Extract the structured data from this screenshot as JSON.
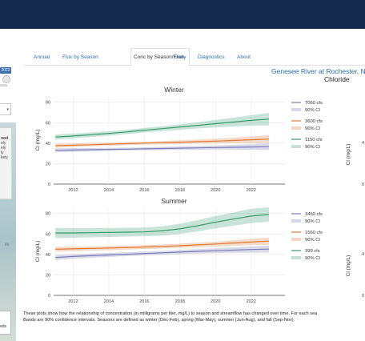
{
  "left_panel": {
    "year_badge": "2023",
    "year_tick": "2023",
    "popup_lines": [
      "ood",
      "ely",
      "ely",
      "",
      "",
      "ly",
      "kely"
    ],
    "map_label": "Irk",
    "legend_label": "eds",
    "below_map_text": "n."
  },
  "tabs": [
    "Annual",
    "Flux by Season",
    "Conc by Season/Flow",
    "Daily",
    "Diagnostics",
    "About"
  ],
  "active_tab": "Conc by Season/Flow",
  "site_title": "Genesee River at Rochester, N",
  "param_title": "Chloride",
  "footnote": {
    "line1": "These plots show how the relationship of concentration (in milligrams per liter, mg/L) to season and streamflow has changed over time. For each sea",
    "line2": "Bands are 90% confidence intervals. Seasons are defined as winter (Dec-Feb), spring (Mar-May), summer (Jun-Aug), and fall (Sep-Nov)."
  },
  "colors": {
    "high_flow": "#7b7bb8",
    "mid_flow": "#e07b39",
    "low_flow": "#3a9a6e",
    "header": "#142a4f",
    "link": "#2a6fb8"
  },
  "right_edge": {
    "ylabel": "Cl (mg/L)",
    "tick": "4"
  },
  "chart_data": [
    {
      "type": "line",
      "title": "Winter",
      "xlabel": "",
      "ylabel": "Cl (mg/L)",
      "xlim": [
        2010.9,
        2023.9
      ],
      "ylim": [
        0,
        86
      ],
      "xticks": [
        2012,
        2014,
        2016,
        2018,
        2020,
        2022
      ],
      "yticks": [
        0,
        20,
        40,
        60,
        80
      ],
      "x": [
        2011,
        2012,
        2013,
        2014,
        2015,
        2016,
        2017,
        2018,
        2019,
        2020,
        2021,
        2022,
        2023
      ],
      "series": [
        {
          "name": "7060 cfs",
          "band_label": "90% CI",
          "color": "#7b7bb8",
          "values": [
            33,
            33.3,
            33.6,
            33.9,
            34.2,
            34.5,
            34.8,
            35.1,
            35.4,
            35.7,
            36,
            36.3,
            36.6
          ],
          "lower": [
            31,
            31.5,
            32,
            32.4,
            32.8,
            33,
            33.2,
            33.4,
            33.5,
            33.6,
            33.6,
            33.5,
            33.3
          ],
          "upper": [
            35,
            35.1,
            35.2,
            35.4,
            35.6,
            36,
            36.4,
            36.8,
            37.3,
            37.8,
            38.4,
            39.1,
            40
          ]
        },
        {
          "name": "3600 cfs",
          "band_label": "90% CI",
          "color": "#e07b39",
          "values": [
            37.5,
            38,
            38.5,
            39,
            39.5,
            40,
            40.5,
            41,
            41.5,
            42,
            42.6,
            43.3,
            44
          ],
          "lower": [
            35.5,
            36.2,
            36.9,
            37.5,
            38,
            38.5,
            38.9,
            39.2,
            39.5,
            39.7,
            39.9,
            40,
            40
          ],
          "upper": [
            39.5,
            39.8,
            40.1,
            40.5,
            41,
            41.5,
            42.1,
            42.8,
            43.5,
            44.3,
            45.3,
            46.6,
            48
          ]
        },
        {
          "name": "1150 cfs",
          "band_label": "90% CI",
          "color": "#3a9a6e",
          "values": [
            46,
            47,
            48.2,
            49.5,
            51,
            52.6,
            54.2,
            55.8,
            57.4,
            59,
            60.6,
            62.2,
            63.5
          ],
          "lower": [
            43.5,
            44.7,
            46,
            47.4,
            48.9,
            50.4,
            51.8,
            53.1,
            54.3,
            55.4,
            56.3,
            57.1,
            57.5
          ],
          "upper": [
            48.5,
            49.3,
            50.4,
            51.6,
            53.1,
            54.8,
            56.6,
            58.5,
            60.5,
            62.6,
            64.9,
            67.3,
            69.5
          ]
        }
      ]
    },
    {
      "type": "line",
      "title": "Summer",
      "xlabel": "",
      "ylabel": "Cl (mg/L)",
      "xlim": [
        2010.9,
        2023.9
      ],
      "ylim": [
        0,
        86
      ],
      "xticks": [
        2012,
        2014,
        2016,
        2018,
        2020,
        2022
      ],
      "yticks": [
        0,
        20,
        40,
        60,
        80
      ],
      "x": [
        2011,
        2012,
        2013,
        2014,
        2015,
        2016,
        2017,
        2018,
        2019,
        2020,
        2021,
        2022,
        2023
      ],
      "series": [
        {
          "name": "3450 cfs",
          "band_label": "90% CI",
          "color": "#7b7bb8",
          "values": [
            37,
            38,
            38.8,
            39.5,
            40.2,
            40.9,
            41.6,
            42.3,
            43,
            43.6,
            44.2,
            44.8,
            45.2
          ],
          "lower": [
            34.5,
            35.7,
            36.7,
            37.5,
            38.3,
            39,
            39.7,
            40.3,
            40.8,
            41.2,
            41.5,
            41.7,
            41.8
          ],
          "upper": [
            39.5,
            40.3,
            40.9,
            41.5,
            42.1,
            42.8,
            43.5,
            44.3,
            45.2,
            46,
            46.9,
            47.9,
            48.6
          ]
        },
        {
          "name": "1560 cfs",
          "band_label": "90% CI",
          "color": "#e07b39",
          "values": [
            45,
            45.4,
            45.8,
            46.2,
            46.7,
            47.2,
            47.8,
            48.5,
            49.3,
            50.2,
            51.1,
            52.1,
            53
          ],
          "lower": [
            42.5,
            43.1,
            43.7,
            44.2,
            44.8,
            45.3,
            45.9,
            46.5,
            47.1,
            47.8,
            48.4,
            49.1,
            49.5
          ],
          "upper": [
            47.5,
            47.7,
            47.9,
            48.2,
            48.6,
            49.1,
            49.7,
            50.5,
            51.5,
            52.6,
            53.8,
            55.1,
            56.5
          ]
        },
        {
          "name": "399 cfs",
          "band_label": "90% CI",
          "color": "#3a9a6e",
          "values": [
            61,
            61,
            61.2,
            61.5,
            61.8,
            62,
            63,
            65,
            68,
            71.5,
            74.5,
            77.5,
            79
          ],
          "lower": [
            56,
            56.3,
            56.7,
            57.1,
            57.5,
            57.8,
            58.5,
            60,
            62.5,
            65.5,
            68,
            70.5,
            72
          ],
          "upper": [
            66,
            65.7,
            65.7,
            65.9,
            66.1,
            66.2,
            67.5,
            70,
            73.5,
            77.5,
            81,
            84.5,
            86
          ]
        }
      ]
    }
  ]
}
